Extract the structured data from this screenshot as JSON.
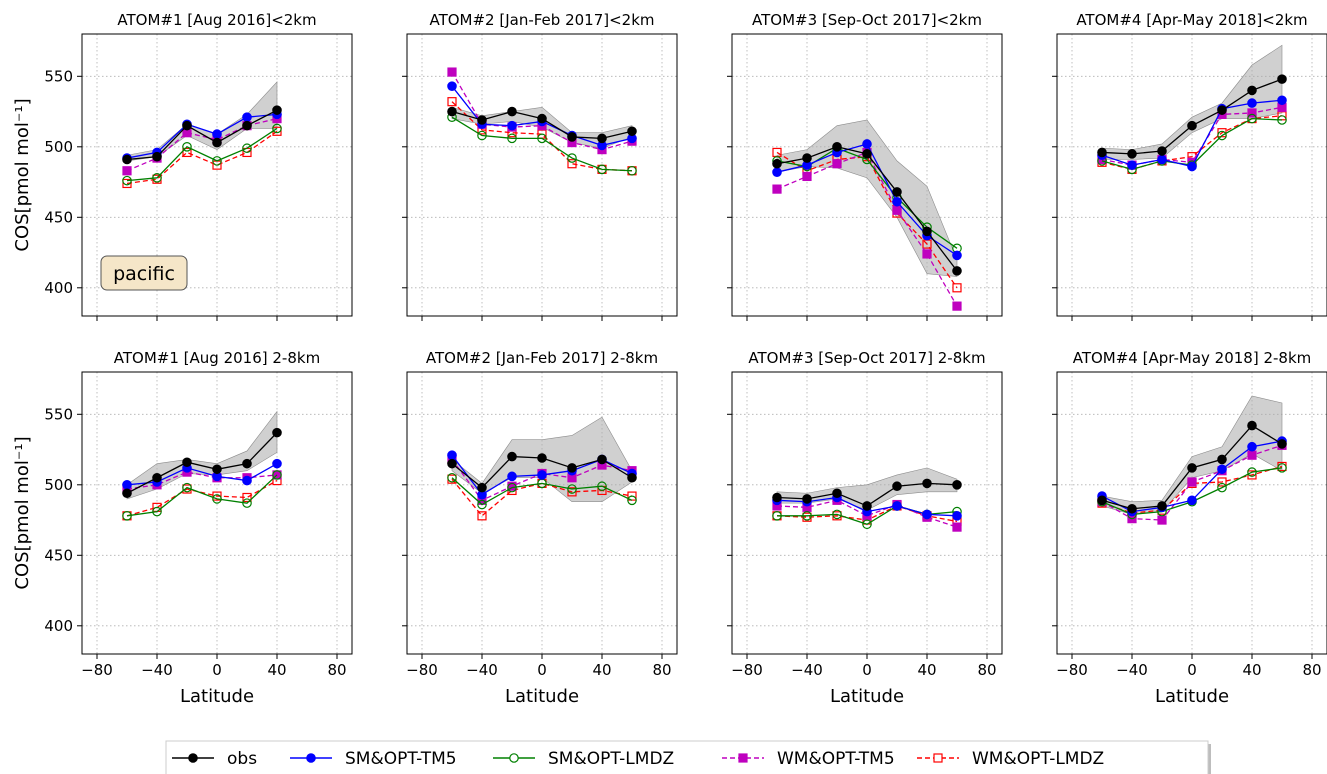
{
  "figure": {
    "ylabel": "COS[pmol mol⁻¹]",
    "xlabel": "Latitude",
    "annotation": "pacific"
  },
  "legend": {
    "items": [
      {
        "key": "obs",
        "label": "obs"
      },
      {
        "key": "sm_tm5",
        "label": "SM&OPT-TM5"
      },
      {
        "key": "sm_lmdz",
        "label": "SM&OPT-LMDZ"
      },
      {
        "key": "wm_tm5",
        "label": "WM&OPT-TM5"
      },
      {
        "key": "wm_lmdz",
        "label": "WM&OPT-LMDZ"
      }
    ]
  },
  "styles": {
    "obs": {
      "color": "#000000",
      "dash": "",
      "marker": "circle",
      "fill": "#000000"
    },
    "sm_tm5": {
      "color": "#0000ff",
      "dash": "",
      "marker": "circle",
      "fill": "#0000ff"
    },
    "sm_lmdz": {
      "color": "#008000",
      "dash": "",
      "marker": "circle",
      "fill": "none"
    },
    "wm_tm5": {
      "color": "#bf00bf",
      "dash": "5,3",
      "marker": "square",
      "fill": "#bf00bf"
    },
    "wm_lmdz": {
      "color": "#ff0000",
      "dash": "5,3",
      "marker": "square",
      "fill": "none"
    },
    "band": "#a9a9a9"
  },
  "chart_data": [
    {
      "type": "line",
      "title": "ATOM#1 [Aug 2016]<2km",
      "xlim": [
        -90,
        90
      ],
      "ylim": [
        380,
        580
      ],
      "xticks": [
        -80,
        -40,
        0,
        40,
        80
      ],
      "yticks": [
        400,
        450,
        500,
        550
      ],
      "x": [
        -60,
        -40,
        -20,
        0,
        20,
        40
      ],
      "band": {
        "low": [
          490,
          493,
          508,
          498,
          513,
          513
        ],
        "high": [
          494,
          498,
          516,
          509,
          523,
          546
        ]
      },
      "series": [
        {
          "key": "obs",
          "name": "obs",
          "values": [
            491,
            493,
            515,
            503,
            515,
            526
          ]
        },
        {
          "key": "sm_tm5",
          "name": "SM&OPT-TM5",
          "values": [
            492,
            496,
            516,
            509,
            521,
            523
          ]
        },
        {
          "key": "sm_lmdz",
          "name": "SM&OPT-LMDZ",
          "values": [
            476,
            478,
            500,
            490,
            499,
            513
          ]
        },
        {
          "key": "wm_tm5",
          "name": "WM&OPT-TM5",
          "values": [
            483,
            492,
            510,
            505,
            515,
            520
          ]
        },
        {
          "key": "wm_lmdz",
          "name": "WM&OPT-LMDZ",
          "values": [
            474,
            477,
            496,
            487,
            496,
            511
          ]
        }
      ]
    },
    {
      "type": "line",
      "title": "ATOM#2 [Jan-Feb 2017]<2km",
      "xlim": [
        -90,
        90
      ],
      "ylim": [
        380,
        580
      ],
      "xticks": [
        -80,
        -40,
        0,
        40,
        80
      ],
      "yticks": [
        400,
        450,
        500,
        550
      ],
      "x": [
        -60,
        -40,
        -20,
        0,
        20,
        40,
        60
      ],
      "band": {
        "low": [
          520,
          516,
          518,
          514,
          503,
          499,
          507
        ],
        "high": [
          528,
          522,
          525,
          528,
          510,
          510,
          515
        ]
      },
      "series": [
        {
          "key": "obs",
          "name": "obs",
          "values": [
            525,
            519,
            525,
            520,
            507,
            506,
            511
          ]
        },
        {
          "key": "sm_tm5",
          "name": "SM&OPT-TM5",
          "values": [
            543,
            516,
            515,
            518,
            508,
            501,
            506
          ]
        },
        {
          "key": "sm_lmdz",
          "name": "SM&OPT-LMDZ",
          "values": [
            521,
            508,
            506,
            506,
            492,
            484,
            483
          ]
        },
        {
          "key": "wm_tm5",
          "name": "WM&OPT-TM5",
          "values": [
            553,
            516,
            514,
            515,
            503,
            498,
            504
          ]
        },
        {
          "key": "wm_lmdz",
          "name": "WM&OPT-LMDZ",
          "values": [
            532,
            512,
            510,
            509,
            488,
            484,
            483
          ]
        }
      ]
    },
    {
      "type": "line",
      "title": "ATOM#3 [Sep-Oct 2017]<2km",
      "xlim": [
        -90,
        90
      ],
      "ylim": [
        380,
        580
      ],
      "xticks": [
        -80,
        -40,
        0,
        40,
        80
      ],
      "yticks": [
        400,
        450,
        500,
        550
      ],
      "x": [
        -60,
        -40,
        -20,
        0,
        20,
        40,
        60
      ],
      "band": {
        "low": [
          482,
          486,
          485,
          478,
          450,
          410,
          408
        ],
        "high": [
          494,
          498,
          515,
          519,
          490,
          472,
          420
        ]
      },
      "series": [
        {
          "key": "obs",
          "name": "obs",
          "values": [
            488,
            492,
            500,
            495,
            468,
            440,
            412
          ]
        },
        {
          "key": "sm_tm5",
          "name": "SM&OPT-TM5",
          "values": [
            482,
            487,
            496,
            502,
            461,
            437,
            423
          ]
        },
        {
          "key": "sm_lmdz",
          "name": "SM&OPT-LMDZ",
          "values": [
            490,
            486,
            499,
            491,
            464,
            443,
            428
          ]
        },
        {
          "key": "wm_tm5",
          "name": "WM&OPT-TM5",
          "values": [
            470,
            479,
            488,
            496,
            455,
            424,
            387
          ]
        },
        {
          "key": "wm_lmdz",
          "name": "WM&OPT-LMDZ",
          "values": [
            496,
            483,
            491,
            493,
            453,
            431,
            400
          ]
        }
      ]
    },
    {
      "type": "line",
      "title": "ATOM#4 [Apr-May 2018]<2km",
      "xlim": [
        -90,
        90
      ],
      "ylim": [
        380,
        580
      ],
      "xticks": [
        -80,
        -40,
        0,
        40,
        80
      ],
      "yticks": [
        400,
        450,
        500,
        550
      ],
      "x": [
        -60,
        -40,
        -20,
        0,
        20,
        40,
        60
      ],
      "band": {
        "low": [
          491,
          491,
          492,
          510,
          520,
          520,
          524
        ],
        "high": [
          499,
          498,
          502,
          521,
          531,
          558,
          572
        ]
      },
      "series": [
        {
          "key": "obs",
          "name": "obs",
          "values": [
            496,
            495,
            497,
            515,
            526,
            540,
            548
          ]
        },
        {
          "key": "sm_tm5",
          "name": "SM&OPT-TM5",
          "values": [
            494,
            487,
            491,
            486,
            527,
            531,
            533
          ]
        },
        {
          "key": "sm_lmdz",
          "name": "SM&OPT-LMDZ",
          "values": [
            490,
            484,
            490,
            487,
            508,
            520,
            519
          ]
        },
        {
          "key": "wm_tm5",
          "name": "WM&OPT-TM5",
          "values": [
            491,
            487,
            491,
            489,
            523,
            524,
            528
          ]
        },
        {
          "key": "wm_lmdz",
          "name": "WM&OPT-LMDZ",
          "values": [
            489,
            484,
            490,
            493,
            510,
            520,
            522
          ]
        }
      ]
    },
    {
      "type": "line",
      "title": "ATOM#1 [Aug 2016] 2-8km",
      "xlim": [
        -90,
        90
      ],
      "ylim": [
        380,
        580
      ],
      "xticks": [
        -80,
        -40,
        0,
        40,
        80
      ],
      "yticks": [
        400,
        450,
        500,
        550
      ],
      "x": [
        -60,
        -40,
        -20,
        0,
        20,
        40
      ],
      "band": {
        "low": [
          490,
          497,
          508,
          507,
          510,
          523
        ],
        "high": [
          500,
          515,
          518,
          515,
          524,
          552
        ]
      },
      "series": [
        {
          "key": "obs",
          "name": "obs",
          "values": [
            494,
            505,
            516,
            511,
            515,
            537
          ]
        },
        {
          "key": "sm_tm5",
          "name": "SM&OPT-TM5",
          "values": [
            500,
            502,
            512,
            506,
            503,
            515
          ]
        },
        {
          "key": "sm_lmdz",
          "name": "SM&OPT-LMDZ",
          "values": [
            478,
            481,
            498,
            490,
            487,
            507
          ]
        },
        {
          "key": "wm_tm5",
          "name": "WM&OPT-TM5",
          "values": [
            497,
            500,
            509,
            505,
            505,
            507
          ]
        },
        {
          "key": "wm_lmdz",
          "name": "WM&OPT-LMDZ",
          "values": [
            478,
            484,
            497,
            492,
            491,
            503
          ]
        }
      ]
    },
    {
      "type": "line",
      "title": "ATOM#2 [Jan-Feb 2017] 2-8km",
      "xlim": [
        -90,
        90
      ],
      "ylim": [
        380,
        580
      ],
      "xticks": [
        -80,
        -40,
        0,
        40,
        80
      ],
      "yticks": [
        400,
        450,
        500,
        550
      ],
      "x": [
        -60,
        -40,
        -20,
        0,
        20,
        40,
        60
      ],
      "band": {
        "low": [
          510,
          494,
          505,
          505,
          488,
          488,
          502
        ],
        "high": [
          518,
          501,
          532,
          532,
          535,
          548,
          510
        ]
      },
      "series": [
        {
          "key": "obs",
          "name": "obs",
          "values": [
            515,
            498,
            520,
            519,
            512,
            518,
            505
          ]
        },
        {
          "key": "sm_tm5",
          "name": "SM&OPT-TM5",
          "values": [
            521,
            493,
            506,
            507,
            510,
            518,
            508
          ]
        },
        {
          "key": "sm_lmdz",
          "name": "SM&OPT-LMDZ",
          "values": [
            505,
            486,
            498,
            501,
            497,
            499,
            489
          ]
        },
        {
          "key": "wm_tm5",
          "name": "WM&OPT-TM5",
          "values": [
            518,
            489,
            499,
            508,
            505,
            514,
            510
          ]
        },
        {
          "key": "wm_lmdz",
          "name": "WM&OPT-LMDZ",
          "values": [
            504,
            478,
            496,
            501,
            495,
            496,
            492
          ]
        }
      ]
    },
    {
      "type": "line",
      "title": "ATOM#3 [Sep-Oct 2017] 2-8km",
      "xlim": [
        -90,
        90
      ],
      "ylim": [
        380,
        580
      ],
      "xticks": [
        -80,
        -40,
        0,
        40,
        80
      ],
      "yticks": [
        400,
        450,
        500,
        550
      ],
      "x": [
        -60,
        -40,
        -20,
        0,
        20,
        40,
        60
      ],
      "band": {
        "low": [
          487,
          487,
          490,
          482,
          493,
          495,
          495
        ],
        "high": [
          495,
          494,
          498,
          500,
          507,
          512,
          504
        ]
      },
      "series": [
        {
          "key": "obs",
          "name": "obs",
          "values": [
            491,
            490,
            494,
            485,
            499,
            501,
            500
          ]
        },
        {
          "key": "sm_tm5",
          "name": "SM&OPT-TM5",
          "values": [
            489,
            488,
            491,
            481,
            485,
            479,
            478
          ]
        },
        {
          "key": "sm_lmdz",
          "name": "SM&OPT-LMDZ",
          "values": [
            478,
            478,
            479,
            472,
            485,
            479,
            481
          ]
        },
        {
          "key": "wm_tm5",
          "name": "WM&OPT-TM5",
          "values": [
            485,
            484,
            489,
            478,
            486,
            477,
            470
          ]
        },
        {
          "key": "wm_lmdz",
          "name": "WM&OPT-LMDZ",
          "values": [
            478,
            477,
            478,
            475,
            485,
            478,
            474
          ]
        }
      ]
    },
    {
      "type": "line",
      "title": "ATOM#4 [Apr-May 2018] 2-8km",
      "xlim": [
        -90,
        90
      ],
      "ylim": [
        380,
        580
      ],
      "xticks": [
        -80,
        -40,
        0,
        40,
        80
      ],
      "yticks": [
        400,
        450,
        500,
        550
      ],
      "x": [
        -60,
        -40,
        -20,
        0,
        20,
        40,
        60
      ],
      "band": {
        "low": [
          485,
          479,
          481,
          505,
          510,
          522,
          510
        ],
        "high": [
          492,
          488,
          489,
          520,
          527,
          563,
          558
        ]
      },
      "series": [
        {
          "key": "obs",
          "name": "obs",
          "values": [
            489,
            483,
            485,
            512,
            518,
            542,
            529
          ]
        },
        {
          "key": "sm_tm5",
          "name": "SM&OPT-TM5",
          "values": [
            492,
            481,
            484,
            489,
            511,
            527,
            531
          ]
        },
        {
          "key": "sm_lmdz",
          "name": "SM&OPT-LMDZ",
          "values": [
            488,
            479,
            481,
            488,
            498,
            509,
            512
          ]
        },
        {
          "key": "wm_tm5",
          "name": "WM&OPT-TM5",
          "values": [
            488,
            476,
            475,
            502,
            510,
            521,
            528
          ]
        },
        {
          "key": "wm_lmdz",
          "name": "WM&OPT-LMDZ",
          "values": [
            487,
            480,
            482,
            501,
            502,
            507,
            513
          ]
        }
      ]
    }
  ]
}
